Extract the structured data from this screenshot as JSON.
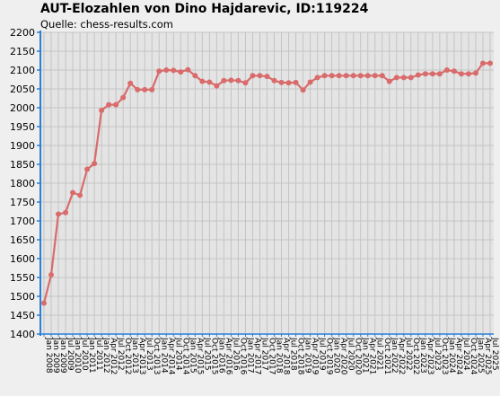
{
  "chart_data": {
    "type": "line",
    "title": "AUT-Elozahlen von Dino Hajdarevic, ID:119224",
    "subtitle": "Quelle: chess-results.com",
    "xlabel": "",
    "ylabel": "",
    "ylim": [
      1400,
      2200
    ],
    "yticks": [
      1400,
      1450,
      1500,
      1550,
      1600,
      1650,
      1700,
      1750,
      1800,
      1850,
      1900,
      1950,
      2000,
      2050,
      2100,
      2150,
      2200
    ],
    "grid": true,
    "line_color": "#d96b6b",
    "categories": [
      "Jan 2008",
      "Jan 2009",
      "Jan 2009",
      "Jul 2009",
      "Jan 2010",
      "Jul 2010",
      "Jan 2011",
      "Jul 2011",
      "Jan 2012",
      "Apr 2012",
      "Jul 2012",
      "Oct 2012",
      "Jan 2013",
      "Apr 2013",
      "Jul 2013",
      "Oct 2013",
      "Jan 2014",
      "Apr 2014",
      "Jul 2014",
      "Oct 2014",
      "Jan 2015",
      "Apr 2015",
      "Jul 2015",
      "Oct 2015",
      "Jan 2016",
      "Apr 2016",
      "Jul 2016",
      "Oct 2016",
      "Jan 2017",
      "Apr 2017",
      "Jul 2017",
      "Oct 2017",
      "Jan 2018",
      "Apr 2018",
      "Jul 2018",
      "Oct 2018",
      "Jan 2019",
      "Apr 2019",
      "Jul 2019",
      "Oct 2019",
      "Jan 2020",
      "Apr 2020",
      "Jul 2020",
      "Oct 2020",
      "Jan 2021",
      "Apr 2021",
      "Jul 2021",
      "Oct 2021",
      "Jan 2022",
      "Apr 2022",
      "Jul 2022",
      "Oct 2022",
      "Jan 2023",
      "Apr 2023",
      "Jul 2023",
      "Oct 2023",
      "Jan 2024",
      "Apr 2024",
      "Jul 2024",
      "Oct 2024",
      "Jan 2025",
      "Apr 2025",
      "Jul 2025"
    ],
    "series": [
      {
        "values": [
          1482,
          1557,
          1718,
          1722,
          1775,
          1768,
          1837,
          1852,
          1993,
          2008,
          2008,
          2027,
          2065,
          2048,
          2048,
          2048,
          2097,
          2100,
          2099,
          2095,
          2101,
          2085,
          2070,
          2068,
          2058,
          2072,
          2073,
          2072,
          2066,
          2085,
          2085,
          2083,
          2072,
          2067,
          2066,
          2067,
          2047,
          2068,
          2080,
          2085,
          2085,
          2085,
          2085,
          2085,
          2085,
          2085,
          2085,
          2085,
          2070,
          2080,
          2080,
          2080,
          2087,
          2090,
          2090,
          2090,
          2100,
          2097,
          2090,
          2090,
          2092,
          2118,
          2118
        ]
      }
    ]
  }
}
